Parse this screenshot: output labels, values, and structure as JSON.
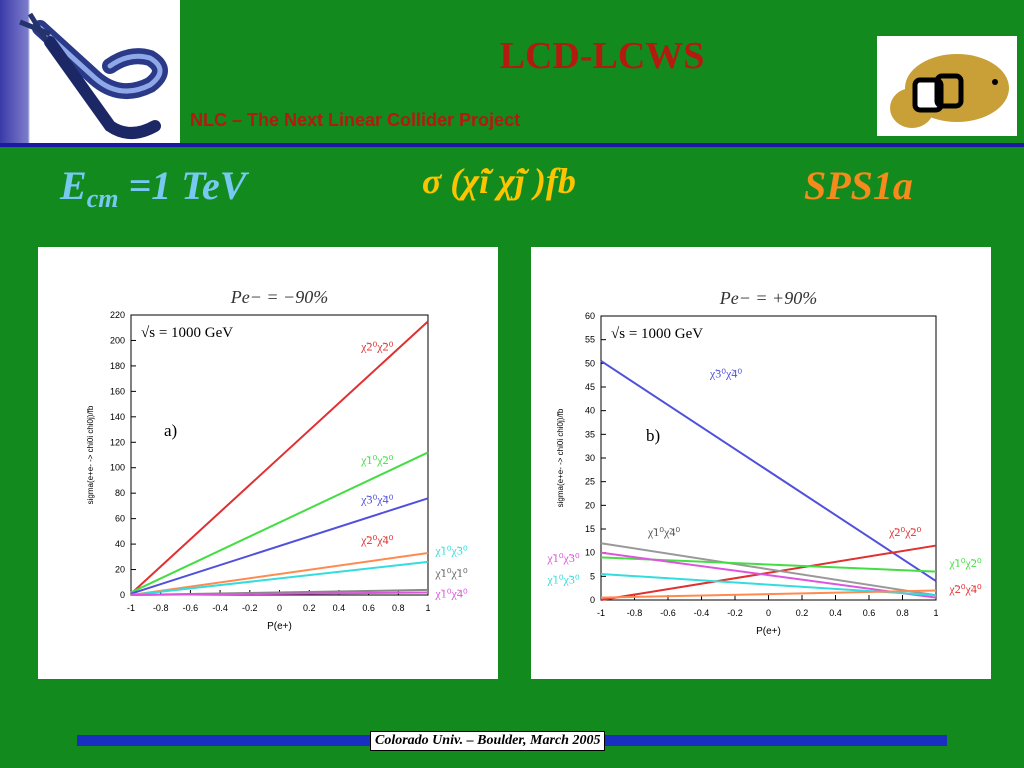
{
  "header": {
    "title": "LCD-LCWS",
    "subtitle": "NLC – The Next Linear Collider Project",
    "ecm_symbol": "E",
    "ecm_sub": "cm",
    "ecm_value": "=1 TeV",
    "sigma_label": "σ (χ̃i χ̃j )fb",
    "scenario": "SPS1a"
  },
  "footer": {
    "text": "Colorado Univ. – Boulder, March 2005"
  },
  "colors": {
    "background": "#138a1e",
    "title": "#b31a10",
    "ecm": "#77c9f2",
    "sigma": "#ffc400",
    "scenario": "#f78a1c",
    "band": "#1a2fbf"
  },
  "chart_data": [
    {
      "type": "line",
      "title": "Pe− = −90%",
      "annotation": "√s = 1000 GeV",
      "panel_label": "a)",
      "xlabel": "P(e+)",
      "ylabel": "sigma(e+e- -> chi0i chi0j)/fb",
      "xlim": [
        -1,
        1
      ],
      "ylim": [
        0,
        220
      ],
      "x_ticks": [
        "-1",
        "-0.8",
        "-0.6",
        "-0.4",
        "-0.2",
        "0",
        "0.2",
        "0.4",
        "0.6",
        "0.8",
        "1"
      ],
      "y_ticks": [
        "0",
        "20",
        "40",
        "60",
        "80",
        "100",
        "120",
        "140",
        "160",
        "180",
        "200",
        "220"
      ],
      "grid": false,
      "series": [
        {
          "name": "χ̃2⁰χ̃2⁰",
          "color": "#e03030",
          "x": [
            -1,
            1
          ],
          "y": [
            1,
            215
          ]
        },
        {
          "name": "χ̃1⁰χ̃2⁰",
          "color": "#44dd44",
          "x": [
            -1,
            1
          ],
          "y": [
            2,
            112
          ]
        },
        {
          "name": "χ̃3⁰χ̃4⁰",
          "color": "#5050dd",
          "x": [
            -1,
            1
          ],
          "y": [
            1,
            76
          ]
        },
        {
          "name": "χ̃2⁰χ̃4⁰",
          "color": "#ff8a50",
          "x": [
            -1,
            1
          ],
          "y": [
            0,
            33
          ]
        },
        {
          "name": "χ̃1⁰χ̃3⁰",
          "color": "#33dddd",
          "x": [
            -1,
            1
          ],
          "y": [
            0,
            26
          ]
        },
        {
          "name": "χ̃1⁰χ̃1⁰",
          "color": "#888888",
          "x": [
            -1,
            1
          ],
          "y": [
            0,
            4
          ]
        },
        {
          "name": "χ̃1⁰χ̃4⁰",
          "color": "#dd55dd",
          "x": [
            -1,
            1
          ],
          "y": [
            0,
            2
          ]
        }
      ],
      "labels": [
        {
          "text": "χ̃2⁰χ̃2⁰",
          "color": "#e03030",
          "x": 0.55,
          "y": 192
        },
        {
          "text": "χ̃1⁰χ̃2⁰",
          "color": "#44dd44",
          "x": 0.55,
          "y": 103
        },
        {
          "text": "χ̃3⁰χ̃4⁰",
          "color": "#5050dd",
          "x": 0.55,
          "y": 72
        },
        {
          "text": "χ̃2⁰χ̃4⁰",
          "color": "#e03030",
          "x": 0.55,
          "y": 40
        },
        {
          "text": "χ̃1⁰χ̃3⁰",
          "color": "#33dddd",
          "x": 1.05,
          "y": 32
        },
        {
          "text": "χ̃1⁰χ̃1⁰",
          "color": "#666666",
          "x": 1.05,
          "y": 14
        },
        {
          "text": "χ̃1⁰χ̃4⁰",
          "color": "#dd55dd",
          "x": 1.05,
          "y": -2
        }
      ]
    },
    {
      "type": "line",
      "title": "Pe− = +90%",
      "annotation": "√s = 1000 GeV",
      "panel_label": "b)",
      "xlabel": "P(e+)",
      "ylabel": "sigma(e+e- -> chi0i chi0j)/fb",
      "xlim": [
        -1,
        1
      ],
      "ylim": [
        0,
        60
      ],
      "x_ticks": [
        "-1",
        "-0.8",
        "-0.6",
        "-0.4",
        "-0.2",
        "0",
        "0.2",
        "0.4",
        "0.6",
        "0.8",
        "1"
      ],
      "y_ticks": [
        "0",
        "5",
        "10",
        "15",
        "20",
        "25",
        "30",
        "35",
        "40",
        "45",
        "50",
        "55",
        "60"
      ],
      "grid": false,
      "series": [
        {
          "name": "χ̃3⁰χ̃4⁰",
          "color": "#5050dd",
          "x": [
            -1,
            1
          ],
          "y": [
            50.5,
            4
          ]
        },
        {
          "name": "χ̃2⁰χ̃2⁰",
          "color": "#e03030",
          "x": [
            -1,
            1
          ],
          "y": [
            0,
            11.5
          ]
        },
        {
          "name": "χ̃1⁰χ̃4⁰",
          "color": "#999999",
          "x": [
            -1,
            1
          ],
          "y": [
            12,
            1
          ]
        },
        {
          "name": "χ̃1⁰χ̃2⁰",
          "color": "#44dd44",
          "x": [
            -1,
            1
          ],
          "y": [
            9,
            6
          ]
        },
        {
          "name": "χ̃1⁰χ̃3⁰ (pink)",
          "color": "#dd55dd",
          "x": [
            -1,
            1
          ],
          "y": [
            10,
            0.5
          ]
        },
        {
          "name": "χ̃1⁰χ̃3⁰ (cyan)",
          "color": "#33dddd",
          "x": [
            -1,
            1
          ],
          "y": [
            5.5,
            1
          ]
        },
        {
          "name": "χ̃2⁰χ̃4⁰",
          "color": "#ff8a50",
          "x": [
            -1,
            1
          ],
          "y": [
            0.5,
            2
          ]
        }
      ],
      "labels": [
        {
          "text": "χ̃3⁰χ̃4⁰",
          "color": "#5050dd",
          "x": -0.35,
          "y": 47
        },
        {
          "text": "χ̃1⁰χ̃4⁰",
          "color": "#555555",
          "x": -0.72,
          "y": 13.5
        },
        {
          "text": "χ̃2⁰χ̃2⁰",
          "color": "#e03030",
          "x": 0.72,
          "y": 13.5
        },
        {
          "text": "χ̃1⁰χ̃3⁰",
          "color": "#dd55dd",
          "x": -1.32,
          "y": 8
        },
        {
          "text": "χ̃1⁰χ̃3⁰",
          "color": "#33dddd",
          "x": -1.32,
          "y": 3.5
        },
        {
          "text": "χ̃1⁰χ̃2⁰",
          "color": "#44dd44",
          "x": 1.08,
          "y": 7
        },
        {
          "text": "χ̃2⁰χ̃4⁰",
          "color": "#e03030",
          "x": 1.08,
          "y": 1.5
        }
      ]
    }
  ]
}
